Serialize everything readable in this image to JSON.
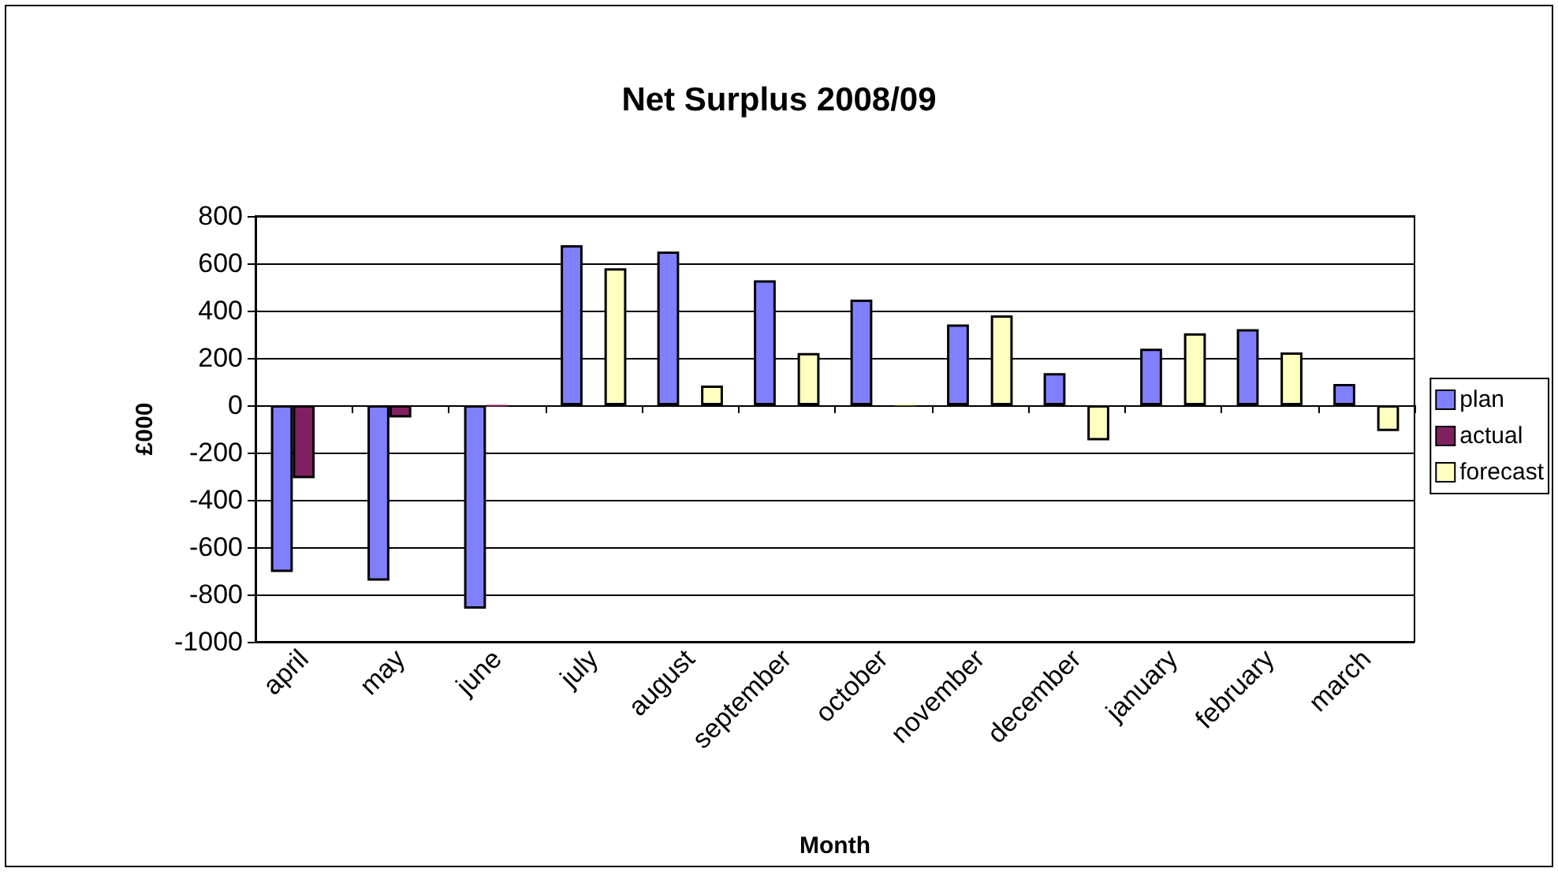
{
  "chart_data": {
    "type": "bar",
    "title": "Net Surplus 2008/09",
    "xlabel": "Month",
    "ylabel": "£000",
    "categories": [
      "april",
      "may",
      "june",
      "july",
      "august",
      "september",
      "october",
      "november",
      "december",
      "january",
      "february",
      "march"
    ],
    "series": [
      {
        "name": "plan",
        "color": "#8080ff",
        "values": [
          -705,
          -742,
          -860,
          677,
          650,
          528,
          447,
          342,
          136,
          239,
          322,
          90
        ]
      },
      {
        "name": "actual",
        "color": "#802060",
        "values": [
          -308,
          -52,
          -3,
          null,
          null,
          null,
          null,
          null,
          null,
          null,
          null,
          null
        ]
      },
      {
        "name": "forecast",
        "color": "#ffffc0",
        "values": [
          null,
          null,
          null,
          579,
          83,
          221,
          5,
          380,
          -148,
          304,
          223,
          -109
        ]
      }
    ],
    "ylim": [
      -1000,
      800
    ],
    "yticks": [
      -1000,
      -800,
      -600,
      -400,
      -200,
      0,
      200,
      400,
      600,
      800
    ],
    "grid": "y",
    "legend": "right"
  }
}
